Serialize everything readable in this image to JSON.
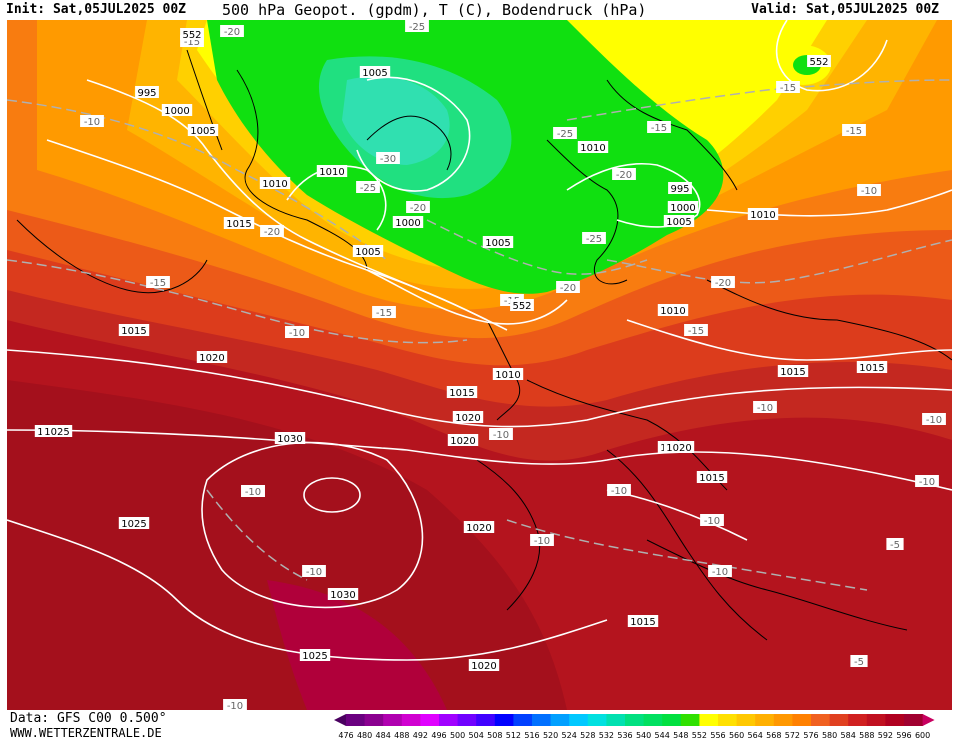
{
  "header": {
    "init": "Init: Sat,05JUL2025 00Z",
    "title": "500 hPa Geopot. (gpdm), T (C), Bodendruck (hPa)",
    "valid": "Valid: Sat,05JUL2025 00Z"
  },
  "footer": {
    "data_source": "Data: GFS C00 0.500°",
    "website": "WWW.WETTERZENTRALE.DE"
  },
  "colorbar": {
    "ticks": [
      "476",
      "480",
      "484",
      "488",
      "492",
      "496",
      "500",
      "504",
      "508",
      "512",
      "516",
      "520",
      "524",
      "528",
      "532",
      "536",
      "540",
      "544",
      "548",
      "552",
      "556",
      "560",
      "564",
      "568",
      "572",
      "576",
      "580",
      "584",
      "588",
      "592",
      "596",
      "600"
    ],
    "colors": [
      "#4a0060",
      "#6a0080",
      "#8a0090",
      "#b000b0",
      "#d000d0",
      "#e000ff",
      "#a000ff",
      "#7000ff",
      "#4000ff",
      "#0000ff",
      "#0040ff",
      "#0070ff",
      "#00a0ff",
      "#00c8ff",
      "#00e0e0",
      "#00e0b0",
      "#00e080",
      "#00e060",
      "#00e040",
      "#30e000",
      "#ffff00",
      "#ffe000",
      "#ffc800",
      "#ffb000",
      "#ff9800",
      "#ff8000",
      "#f06020",
      "#e04020",
      "#d02020",
      "#c01020",
      "#b00020",
      "#a00030",
      "#c80060"
    ]
  },
  "pressure_labels": [
    {
      "text": "995"
    },
    {
      "text": "1000"
    },
    {
      "text": "1005"
    },
    {
      "text": "1005"
    },
    {
      "text": "1010"
    },
    {
      "text": "1010"
    },
    {
      "text": "1000"
    },
    {
      "text": "1005"
    },
    {
      "text": "1010"
    },
    {
      "text": "995"
    },
    {
      "text": "1000"
    },
    {
      "text": "1005"
    },
    {
      "text": "1010"
    },
    {
      "text": "1010"
    },
    {
      "text": "1015"
    },
    {
      "text": "1005"
    },
    {
      "text": "1015"
    },
    {
      "text": "1020"
    },
    {
      "text": "1015"
    },
    {
      "text": "1020"
    },
    {
      "text": "1010"
    },
    {
      "text": "1020"
    },
    {
      "text": "1025"
    },
    {
      "text": "1025"
    },
    {
      "text": "1030"
    },
    {
      "text": "1025"
    },
    {
      "text": "1030"
    },
    {
      "text": "1020"
    },
    {
      "text": "1020"
    },
    {
      "text": "1015"
    },
    {
      "text": "1020"
    },
    {
      "text": "1015"
    },
    {
      "text": "1015"
    },
    {
      "text": "1015"
    },
    {
      "text": "1025"
    },
    {
      "text": "1020"
    }
  ],
  "temp_labels": [
    {
      "text": "-15"
    },
    {
      "text": "-20"
    },
    {
      "text": "-25"
    },
    {
      "text": "-10"
    },
    {
      "text": "-30"
    },
    {
      "text": "-25"
    },
    {
      "text": "-20"
    },
    {
      "text": "-20"
    },
    {
      "text": "-25"
    },
    {
      "text": "-15"
    },
    {
      "text": "-20"
    },
    {
      "text": "-25"
    },
    {
      "text": "-15"
    },
    {
      "text": "-15"
    },
    {
      "text": "-15"
    },
    {
      "text": "-20"
    },
    {
      "text": "-15"
    },
    {
      "text": "-15"
    },
    {
      "text": "-10"
    },
    {
      "text": "-20"
    },
    {
      "text": "-15"
    },
    {
      "text": "-10"
    },
    {
      "text": "-10"
    },
    {
      "text": "-10"
    },
    {
      "text": "-10"
    },
    {
      "text": "-10"
    },
    {
      "text": "-10"
    },
    {
      "text": "-10"
    },
    {
      "text": "-10"
    },
    {
      "text": "-10"
    },
    {
      "text": "-10"
    },
    {
      "text": "-10"
    },
    {
      "text": "-10"
    },
    {
      "text": "-5"
    },
    {
      "text": "-5"
    },
    {
      "text": "-10"
    },
    {
      "text": "-10"
    }
  ],
  "geopot_labels": [
    {
      "text": "552"
    },
    {
      "text": "552"
    },
    {
      "text": "552"
    }
  ]
}
